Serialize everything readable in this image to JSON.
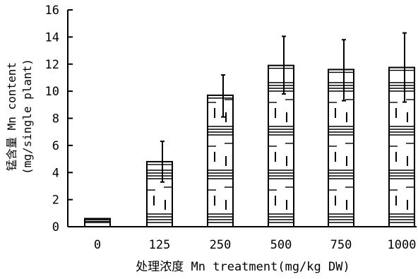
{
  "chart_data": {
    "type": "bar",
    "title": "",
    "xlabel": "处理浓度 Mn treatment(mg/kg DW)",
    "ylabel_line1": "锰含量 Mn content",
    "ylabel_line2": "(mg/single plant)",
    "categories": [
      "0",
      "125",
      "250",
      "500",
      "750",
      "1000"
    ],
    "values": [
      0.6,
      4.8,
      9.7,
      11.9,
      11.6,
      11.75
    ],
    "error_upper": [
      0.6,
      6.3,
      11.2,
      14.05,
      13.8,
      14.3
    ],
    "error_lower": [
      0.6,
      3.3,
      8.1,
      9.8,
      9.3,
      9.2
    ],
    "ylim": [
      0,
      16
    ],
    "yticks": [
      0,
      2,
      4,
      6,
      8,
      10,
      12,
      14,
      16
    ],
    "grid": false,
    "legend": "none",
    "colors": {
      "axis": "#000000",
      "bar_fill": "#ffffff",
      "bar_hatch": "#000000"
    }
  }
}
